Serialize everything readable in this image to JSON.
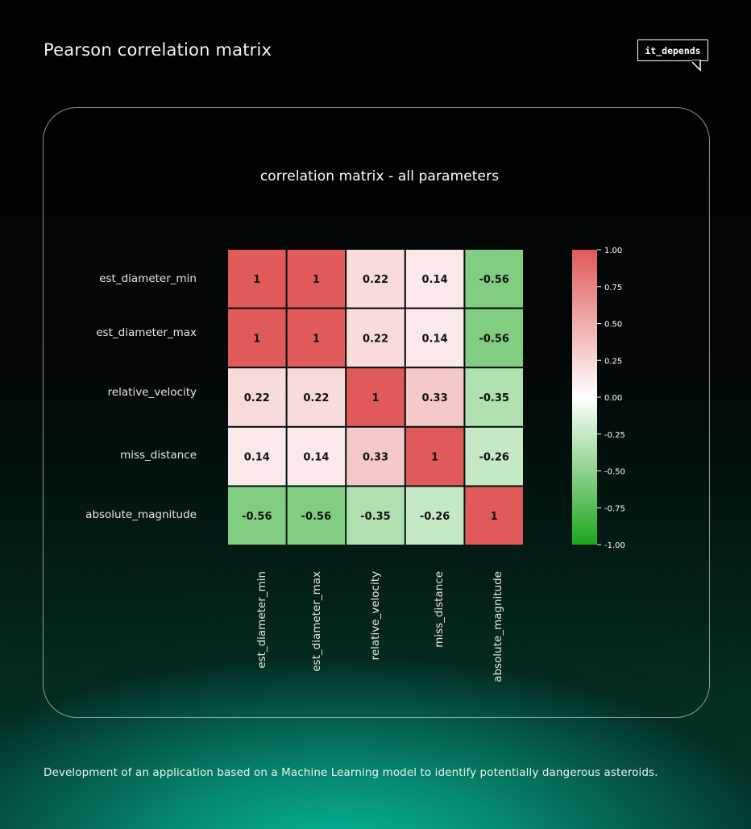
{
  "header": {
    "title": "Pearson correlation matrix",
    "brand": "it_depends"
  },
  "footer": {
    "text": "Development of an application based on a Machine Learning model to identify potentially dangerous asteroids."
  },
  "chart_data": {
    "type": "heatmap",
    "title": "correlation matrix - all parameters",
    "row_labels": [
      "est_diameter_min",
      "est_diameter_max",
      "relative_velocity",
      "miss_distance",
      "absolute_magnitude"
    ],
    "col_labels": [
      "est_diameter_min",
      "est_diameter_max",
      "relative_velocity",
      "miss_distance",
      "absolute_magnitude"
    ],
    "values": [
      [
        1,
        1,
        0.22,
        0.14,
        -0.56
      ],
      [
        1,
        1,
        0.22,
        0.14,
        -0.56
      ],
      [
        0.22,
        0.22,
        1,
        0.33,
        -0.35
      ],
      [
        0.14,
        0.14,
        0.33,
        1,
        -0.26
      ],
      [
        -0.56,
        -0.56,
        -0.35,
        -0.26,
        1
      ]
    ],
    "colorbar": {
      "range": [
        -1,
        1
      ],
      "ticks": [
        1,
        0.75,
        0.5,
        0.25,
        0,
        -0.25,
        -0.5,
        -0.75,
        -1
      ],
      "tick_labels": [
        "1.00",
        "0.75",
        "0.50",
        "0.25",
        "0.00",
        "-0.25",
        "-0.50",
        "-0.75",
        "-1.00"
      ],
      "colors": {
        "high": "#e05a5a",
        "mid": "#ffffff",
        "low": "#1ea51e"
      }
    }
  }
}
